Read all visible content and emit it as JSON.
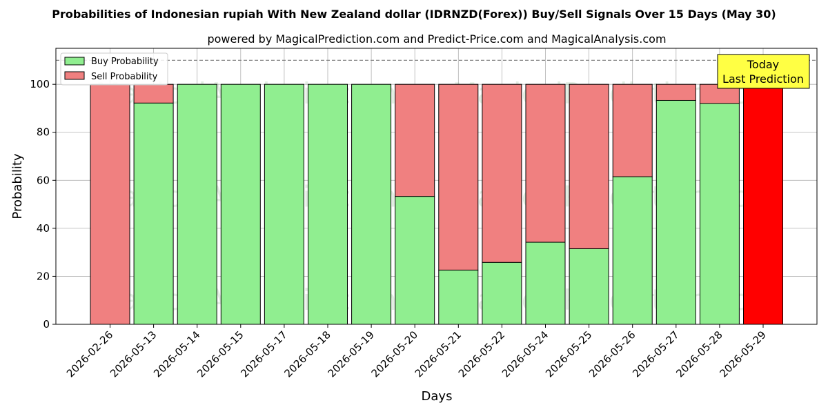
{
  "chart_data": {
    "type": "bar",
    "stacked": true,
    "title": "Probabilities of Indonesian rupiah With New Zealand dollar (IDRNZD(Forex)) Buy/Sell Signals Over 15 Days (May 30)",
    "subtitle": "powered by MagicalPrediction.com and Predict-Price.com and MagicalAnalysis.com",
    "xlabel": "Days",
    "ylabel": "Probability",
    "ylim": [
      0,
      115
    ],
    "yticks": [
      0,
      20,
      40,
      60,
      80,
      100
    ],
    "grid": true,
    "legend_position": "top-left",
    "reference_line": 110,
    "categories": [
      "2026-02-26",
      "2026-05-13",
      "2026-05-14",
      "2026-05-15",
      "2026-05-17",
      "2026-05-18",
      "2026-05-19",
      "2026-05-20",
      "2026-05-21",
      "2026-05-22",
      "2026-05-24",
      "2026-05-25",
      "2026-05-26",
      "2026-05-27",
      "2026-05-28",
      "2026-05-29"
    ],
    "series": [
      {
        "name": "Buy Probability",
        "color": "#90EE90",
        "values": [
          0,
          92.2,
          100,
          100,
          100,
          100,
          100,
          53.3,
          22.6,
          25.8,
          34.2,
          31.5,
          61.5,
          93.3,
          92.0,
          0
        ]
      },
      {
        "name": "Sell Probability",
        "color": "#F08080",
        "values": [
          100,
          7.8,
          0,
          0,
          0,
          0,
          0,
          46.7,
          77.4,
          74.2,
          65.8,
          68.5,
          38.5,
          6.7,
          8.0,
          100
        ]
      }
    ],
    "highlight": {
      "index": 15,
      "color": "#FF0000"
    },
    "annotation": {
      "lines": [
        "Today",
        "Last Prediction"
      ],
      "bg": "#FFFF44"
    },
    "watermark": "MagicalAnalysis.com      MagicalPrediction.com"
  }
}
